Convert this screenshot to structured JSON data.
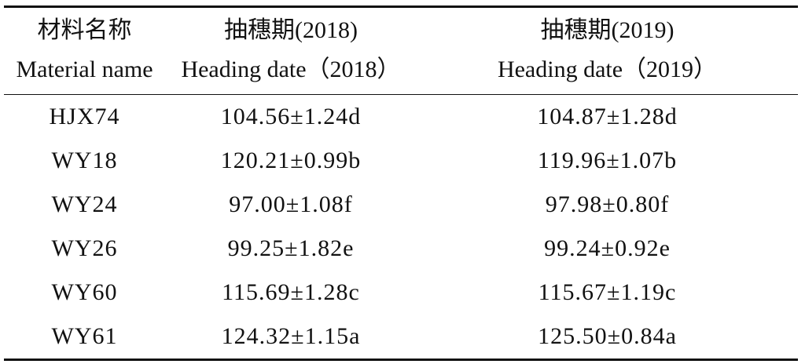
{
  "table": {
    "header": [
      [
        "材料名称",
        "Material name"
      ],
      [
        "抽穗期(2018)",
        "Heading date（2018）"
      ],
      [
        "抽穗期(2019)",
        "Heading date（2019）"
      ]
    ],
    "rows": [
      [
        "HJX74",
        "104.56±1.24d",
        "104.87±1.28d"
      ],
      [
        "WY18",
        "120.21±0.99b",
        "119.96±1.07b"
      ],
      [
        "WY24",
        "97.00±1.08f",
        "97.98±0.80f"
      ],
      [
        "WY26",
        "99.25±1.82e",
        "99.24±0.92e"
      ],
      [
        "WY60",
        "115.69±1.28c",
        "115.67±1.19c"
      ],
      [
        "WY61",
        "124.32±1.15a",
        "125.50±0.84a"
      ]
    ]
  }
}
